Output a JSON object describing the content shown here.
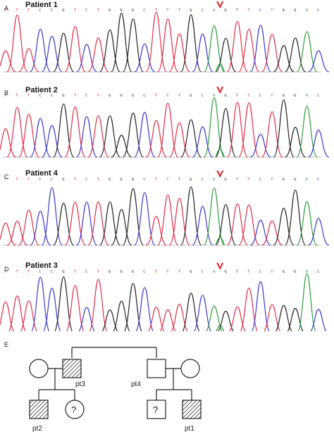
{
  "panels": [
    {
      "letter": "A",
      "title": "Patient 1"
    },
    {
      "letter": "B",
      "title": "Patient 2"
    },
    {
      "letter": "C",
      "title": "Patient 4"
    },
    {
      "letter": "D",
      "title": "Patient 3"
    }
  ],
  "sequence": [
    "T",
    "T",
    "T",
    "C",
    "C",
    "G",
    "T",
    "C",
    "T",
    "G",
    "G",
    "G",
    "C",
    "T",
    "T",
    "T",
    "G",
    "C",
    "A",
    "G",
    "T",
    "T",
    "C",
    "T",
    "G",
    "G",
    "A",
    "C"
  ],
  "base_colors": {
    "A": "#2e9e3e",
    "C": "#3a3ad0",
    "G": "#222222",
    "T": "#e0304a"
  },
  "arrow_color": "#e0252b",
  "pedigree": {
    "letter": "E",
    "labels": {
      "pt1": "pt1",
      "pt2": "pt2",
      "pt3": "pt3",
      "pt4": "pt4"
    },
    "unknown_mark": "?"
  }
}
